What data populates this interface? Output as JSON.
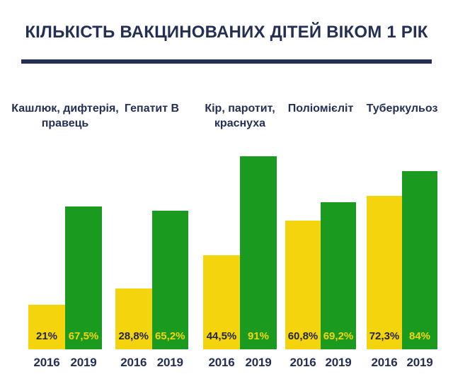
{
  "colors": {
    "background": "#FFFFFF",
    "navy": "#242F55",
    "bar2016": "#F4D40C",
    "bar2019": "#1A9B20",
    "label2016": "#232733",
    "label2019": "#F4D40C"
  },
  "chart_data": {
    "type": "bar",
    "title": "КІЛЬКІСТЬ ВАКЦИНОВАНИХ ДІТЕЙ ВІКОМ 1 РІК",
    "categories": [
      "Кашлюк, дифтерія, правець",
      "Гепатит В",
      "Кір, паротит, краснуха",
      "Поліомієліт",
      "Туберкульоз"
    ],
    "category_display": [
      "Кашлюк, дифтерія,\nправець",
      "Гепатит В",
      "Кір, паротит,\nкраснуха",
      "Поліомієліт",
      "Туберкульоз"
    ],
    "series": [
      {
        "name": "2016",
        "color": "#F4D40C",
        "values": [
          21,
          28.8,
          44.5,
          60.8,
          72.3
        ],
        "value_labels": [
          "21%",
          "28,8%",
          "44,5%",
          "60,8%",
          "72,3%"
        ]
      },
      {
        "name": "2019",
        "color": "#1A9B20",
        "values": [
          67.5,
          65.2,
          91,
          69.2,
          84
        ],
        "value_labels": [
          "67,5%",
          "65,2%",
          "91%",
          "69,2%",
          "84%"
        ]
      }
    ],
    "ylim": [
      0,
      100
    ],
    "grid": false,
    "legend_position": "none",
    "value_label_position": "inside-bottom",
    "x_tick_labels_per_group": [
      "2016",
      "2019"
    ]
  }
}
